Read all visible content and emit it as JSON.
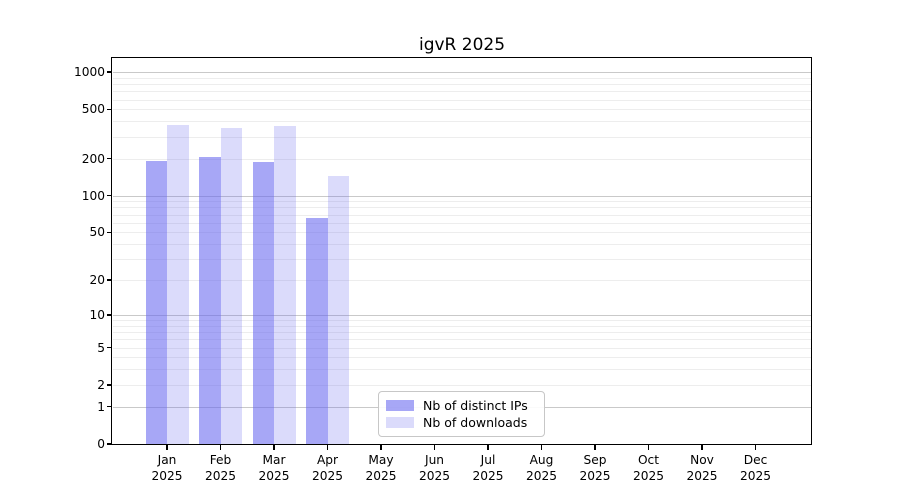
{
  "chart_data": {
    "type": "bar",
    "title": "igvR 2025",
    "xlabel": "",
    "ylabel": "",
    "year": "2025",
    "categories": [
      "Jan",
      "Feb",
      "Mar",
      "Apr",
      "May",
      "Jun",
      "Jul",
      "Aug",
      "Sep",
      "Oct",
      "Nov",
      "Dec"
    ],
    "series": [
      {
        "name": "Nb of distinct IPs",
        "color": "rgba(102,102,240,0.575)",
        "values": [
          190,
          207,
          186,
          66,
          0,
          0,
          0,
          0,
          0,
          0,
          0,
          0
        ]
      },
      {
        "name": "Nb of downloads",
        "color": "rgba(102,102,240,0.235)",
        "values": [
          373,
          352,
          368,
          144,
          0,
          0,
          0,
          0,
          0,
          0,
          0,
          0
        ]
      }
    ],
    "yscale": "log1p",
    "yticks": [
      0,
      1,
      2,
      5,
      10,
      20,
      50,
      100,
      200,
      500,
      1000
    ],
    "ylim": [
      0,
      1275
    ],
    "grid": true,
    "legend_position": "lower-center",
    "colors": {
      "bar_base": "#6666f0",
      "major_grid": "#c9c9c9",
      "minor_grid": "#ededed",
      "spine": "#000000"
    }
  }
}
